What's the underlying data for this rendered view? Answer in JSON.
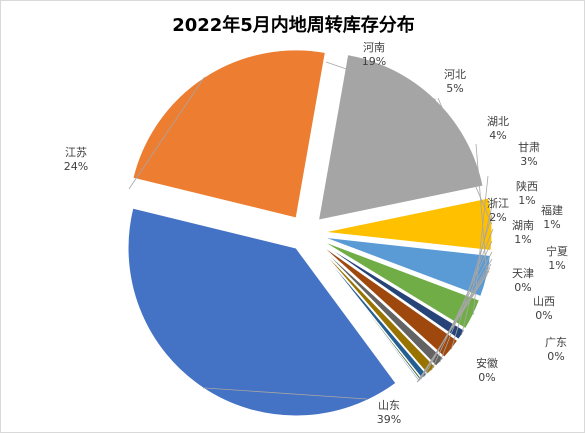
{
  "chart_data": {
    "type": "pie",
    "title": "2022年5月内地周转库存分布",
    "slices": [
      {
        "name": "河南",
        "label": "19%",
        "value": 19,
        "color": "#A5A5A5"
      },
      {
        "name": "河北",
        "label": "5%",
        "value": 5,
        "color": "#FFC000"
      },
      {
        "name": "湖北",
        "label": "4%",
        "value": 4,
        "color": "#5B9BD5"
      },
      {
        "name": "甘肃",
        "label": "3%",
        "value": 3,
        "color": "#70AD47"
      },
      {
        "name": "陕西",
        "label": "1%",
        "value": 1,
        "color": "#264478"
      },
      {
        "name": "浙江",
        "label": "2%",
        "value": 2,
        "color": "#9E480E"
      },
      {
        "name": "福建",
        "label": "1%",
        "value": 1,
        "color": "#636363"
      },
      {
        "name": "湖南",
        "label": "1%",
        "value": 1,
        "color": "#997300"
      },
      {
        "name": "宁夏",
        "label": "1%",
        "value": 0.6,
        "color": "#255E91"
      },
      {
        "name": "天津",
        "label": "0%",
        "value": 0.2,
        "color": "#43682B"
      },
      {
        "name": "山西",
        "label": "0%",
        "value": 0.15,
        "color": "#698ED0"
      },
      {
        "name": "广东",
        "label": "0%",
        "value": 0.1,
        "color": "#F1975A"
      },
      {
        "name": "安徽",
        "label": "0%",
        "value": 0.1,
        "color": "#B7B7B7"
      },
      {
        "name": "山东",
        "label": "39%",
        "value": 39,
        "color": "#4472C4"
      },
      {
        "name": "江苏",
        "label": "24%",
        "value": 24,
        "color": "#ED7D31"
      }
    ]
  }
}
